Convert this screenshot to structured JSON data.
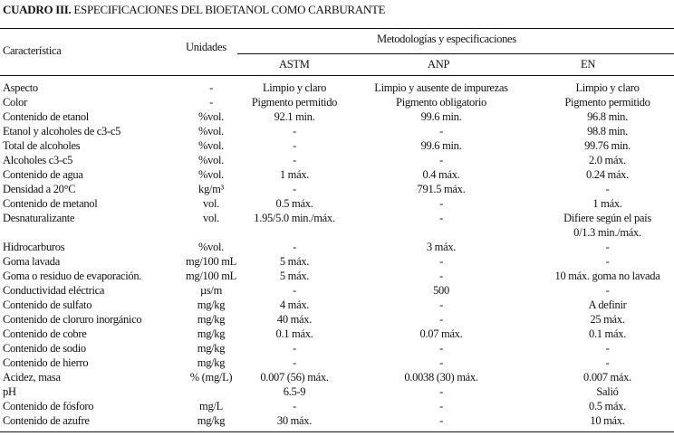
{
  "title": {
    "label": "CUADRO III.",
    "text": "ESPECIFICACIONES DEL BIOETANOL COMO CARBURANTE"
  },
  "header": {
    "characteristic": "Característica",
    "units": "Unidades",
    "group": "Metodologías y especificaciones",
    "astm": "ASTM",
    "anp": "ANP",
    "en": "EN"
  },
  "rows": [
    [
      "Aspecto",
      "-",
      "Limpio y claro",
      "Limpio y ausente de impurezas",
      "Limpio y claro"
    ],
    [
      "Color",
      "-",
      "Pigmento permitido",
      "Pigmento obligatorio",
      "Pigmento permitido"
    ],
    [
      "Contenido de etanol",
      "%vol.",
      "92.1 min.",
      "99.6 min.",
      "96.8 min."
    ],
    [
      "Etanol y alcoholes de c3-c5",
      "%vol.",
      "-",
      "-",
      "98.8 min."
    ],
    [
      "Total de alcoholes",
      "%vol.",
      "-",
      "99.6 min.",
      "99.76 min."
    ],
    [
      "Alcoholes c3-c5",
      "%vol.",
      "-",
      "-",
      "2.0 máx."
    ],
    [
      "Contenido de agua",
      "%vol.",
      "1 máx.",
      "0.4 máx.",
      "0.24 máx."
    ],
    [
      "Densidad a 20°C",
      "kg/m³",
      "-",
      "791.5 máx.",
      "-"
    ],
    [
      "Contenido de metanol",
      "vol.",
      "0.5 máx.",
      "-",
      "1 máx."
    ],
    [
      "Desnaturalizante",
      "vol.",
      "1.95/5.0 min./máx.",
      "-",
      "Difiere según el país\n0/1.3 min./máx."
    ],
    [
      "Hidrocarburos",
      "%vol.",
      "-",
      "3 máx.",
      "-"
    ],
    [
      "Goma lavada",
      "mg/100 mL",
      "5 máx.",
      "-",
      "-"
    ],
    [
      "Goma o residuo de evaporación.",
      "mg/100 mL",
      "5 máx.",
      "-",
      "10 máx. goma no lavada"
    ],
    [
      "Conductividad eléctrica",
      "µs/m",
      "-",
      "500",
      "-"
    ],
    [
      "Contenido de sulfato",
      "mg/kg",
      "4 máx.",
      "-",
      "A definir"
    ],
    [
      "Contenido de cloruro inorgánico",
      "mg/kg",
      "40 máx.",
      "-",
      "25 máx."
    ],
    [
      "Contenido de cobre",
      "mg/kg",
      "0.1 máx.",
      "0.07 máx.",
      "0.1 máx."
    ],
    [
      "Contenido de sodio",
      "mg/kg",
      "-",
      "-",
      "-"
    ],
    [
      "Contenido de hierro",
      "mg/kg",
      "-",
      "-",
      "-"
    ],
    [
      "Acidez, masa",
      "% (mg/L)",
      "0.007 (56) máx.",
      "0.0038 (30) máx.",
      "0.007 máx."
    ],
    [
      "pH",
      "",
      "6.5-9",
      "-",
      "Salió"
    ],
    [
      "Contenido de fósforo",
      "mg/L",
      "-",
      "-",
      "0.5 máx."
    ],
    [
      "Contenido de azufre",
      "mg/kg",
      "30 máx.",
      "-",
      "10 máx."
    ]
  ]
}
